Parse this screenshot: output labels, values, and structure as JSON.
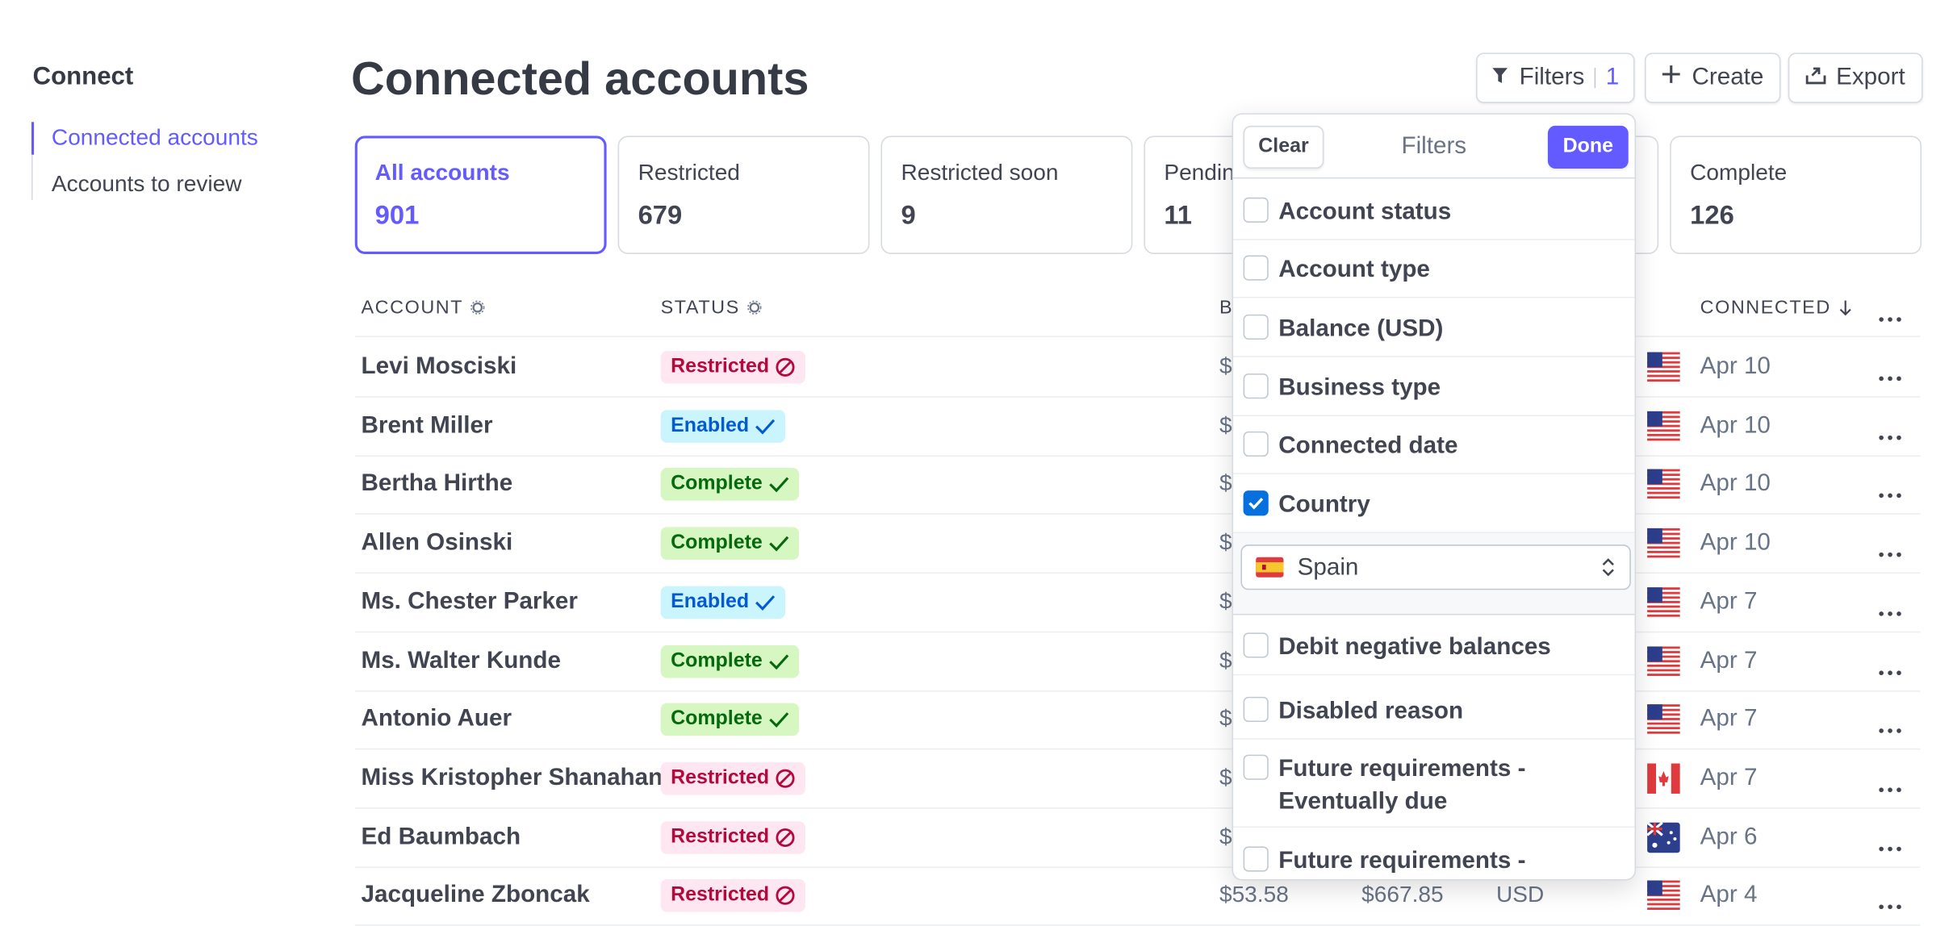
{
  "sidebar": {
    "title": "Connect",
    "nav": [
      "Connected accounts",
      "Accounts to review"
    ]
  },
  "header": {
    "title": "Connected accounts",
    "buttons": {
      "filters": "Filters",
      "filter_count": "1",
      "create": "Create",
      "export": "Export"
    }
  },
  "tabs": [
    {
      "label": "All accounts",
      "count": "901"
    },
    {
      "label": "Restricted",
      "count": "679"
    },
    {
      "label": "Restricted soon",
      "count": "9"
    },
    {
      "label": "Pending",
      "count": "11"
    },
    {
      "label": "",
      "count": ""
    },
    {
      "label": "Complete",
      "count": "126"
    }
  ],
  "table": {
    "columns": {
      "account": "ACCOUNT",
      "status": "STATUS",
      "balance": "B",
      "connected": "CONNECTED"
    },
    "rows": [
      {
        "name": "Levi Mosciski",
        "status": "Restricted",
        "balance": "$",
        "date": "Apr 10"
      },
      {
        "name": "Brent Miller",
        "status": "Enabled",
        "balance": "$",
        "date": "Apr 10"
      },
      {
        "name": "Bertha Hirthe",
        "status": "Complete",
        "balance": "$",
        "date": "Apr 10"
      },
      {
        "name": "Allen Osinski",
        "status": "Complete",
        "balance": "$",
        "date": "Apr 10"
      },
      {
        "name": "Ms. Chester Parker",
        "status": "Enabled",
        "balance": "$",
        "date": "Apr 7"
      },
      {
        "name": "Ms. Walter Kunde",
        "status": "Complete",
        "balance": "$",
        "date": "Apr 7"
      },
      {
        "name": "Antonio Auer",
        "status": "Complete",
        "balance": "$",
        "date": "Apr 7"
      },
      {
        "name": "Miss Kristopher Shanahan",
        "status": "Restricted",
        "balance": "$",
        "date": "Apr 7"
      },
      {
        "name": "Ed Baumbach",
        "status": "Restricted",
        "balance": "$",
        "date": "Apr 6"
      },
      {
        "name": "Jacqueline Zboncak",
        "status": "Restricted",
        "balance": "$53.58",
        "balance2": "$667.85",
        "currency": "USD",
        "date": "Apr 4"
      }
    ]
  },
  "filters_popover": {
    "clear": "Clear",
    "title": "Filters",
    "done": "Done",
    "options": [
      {
        "label": "Account status",
        "checked": false
      },
      {
        "label": "Account type",
        "checked": false
      },
      {
        "label": "Balance (USD)",
        "checked": false
      },
      {
        "label": "Business type",
        "checked": false
      },
      {
        "label": "Connected date",
        "checked": false
      },
      {
        "label": "Country",
        "checked": true
      },
      {
        "label": "Debit negative balances",
        "checked": false
      },
      {
        "label": "Disabled reason",
        "checked": false
      },
      {
        "label": "Future requirements - Eventually due",
        "checked": false
      },
      {
        "label": "Future requirements -",
        "checked": false
      }
    ],
    "country_select": "Spain"
  }
}
